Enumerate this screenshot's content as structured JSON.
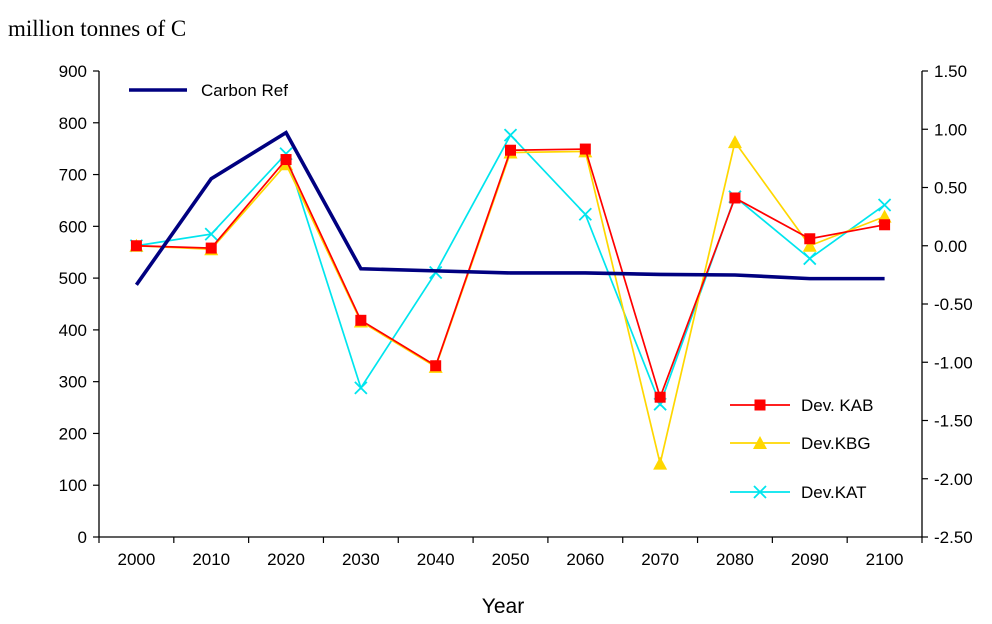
{
  "chart_data": {
    "type": "line",
    "title": "million tonnes of C",
    "xlabel": "Year",
    "ylabel": "",
    "y2label": "",
    "categories": [
      "2000",
      "2010",
      "2020",
      "2030",
      "2040",
      "2050",
      "2060",
      "2070",
      "2080",
      "2090",
      "2100"
    ],
    "ylim": [
      0,
      900
    ],
    "yticks": [
      "0",
      "100",
      "200",
      "300",
      "400",
      "500",
      "600",
      "700",
      "800",
      "900"
    ],
    "y2lim": [
      -2.5,
      1.5
    ],
    "y2ticks": [
      "-2.50",
      "-2.00",
      "-1.50",
      "-1.00",
      "-0.50",
      "0.00",
      "0.50",
      "1.00",
      "1.50"
    ],
    "grid": false,
    "series": [
      {
        "name": "Carbon Ref",
        "axis": "left",
        "color": "#000080",
        "marker": "none",
        "values": [
          487,
          692,
          781,
          518,
          514,
          510,
          510,
          507,
          506,
          499,
          499
        ]
      },
      {
        "name": "Dev. KAB",
        "axis": "right",
        "color": "#ff0000",
        "marker": "square",
        "values": [
          0.0,
          -0.02,
          0.74,
          -0.64,
          -1.03,
          0.82,
          0.83,
          -1.3,
          0.41,
          0.06,
          0.18
        ]
      },
      {
        "name": "Dev.KBG",
        "axis": "right",
        "color": "#ffd700",
        "marker": "triangle",
        "values": [
          0.0,
          -0.03,
          0.7,
          -0.65,
          -1.04,
          0.8,
          0.81,
          -1.87,
          0.89,
          0.0,
          0.25
        ]
      },
      {
        "name": "Dev.KAT",
        "axis": "right",
        "color": "#00e5ee",
        "marker": "x",
        "values": [
          0.0,
          0.1,
          0.79,
          -1.22,
          -0.23,
          0.95,
          0.27,
          -1.36,
          0.42,
          -0.11,
          0.35
        ]
      }
    ],
    "legend": {
      "placement": "top-left and bottom-right"
    }
  }
}
